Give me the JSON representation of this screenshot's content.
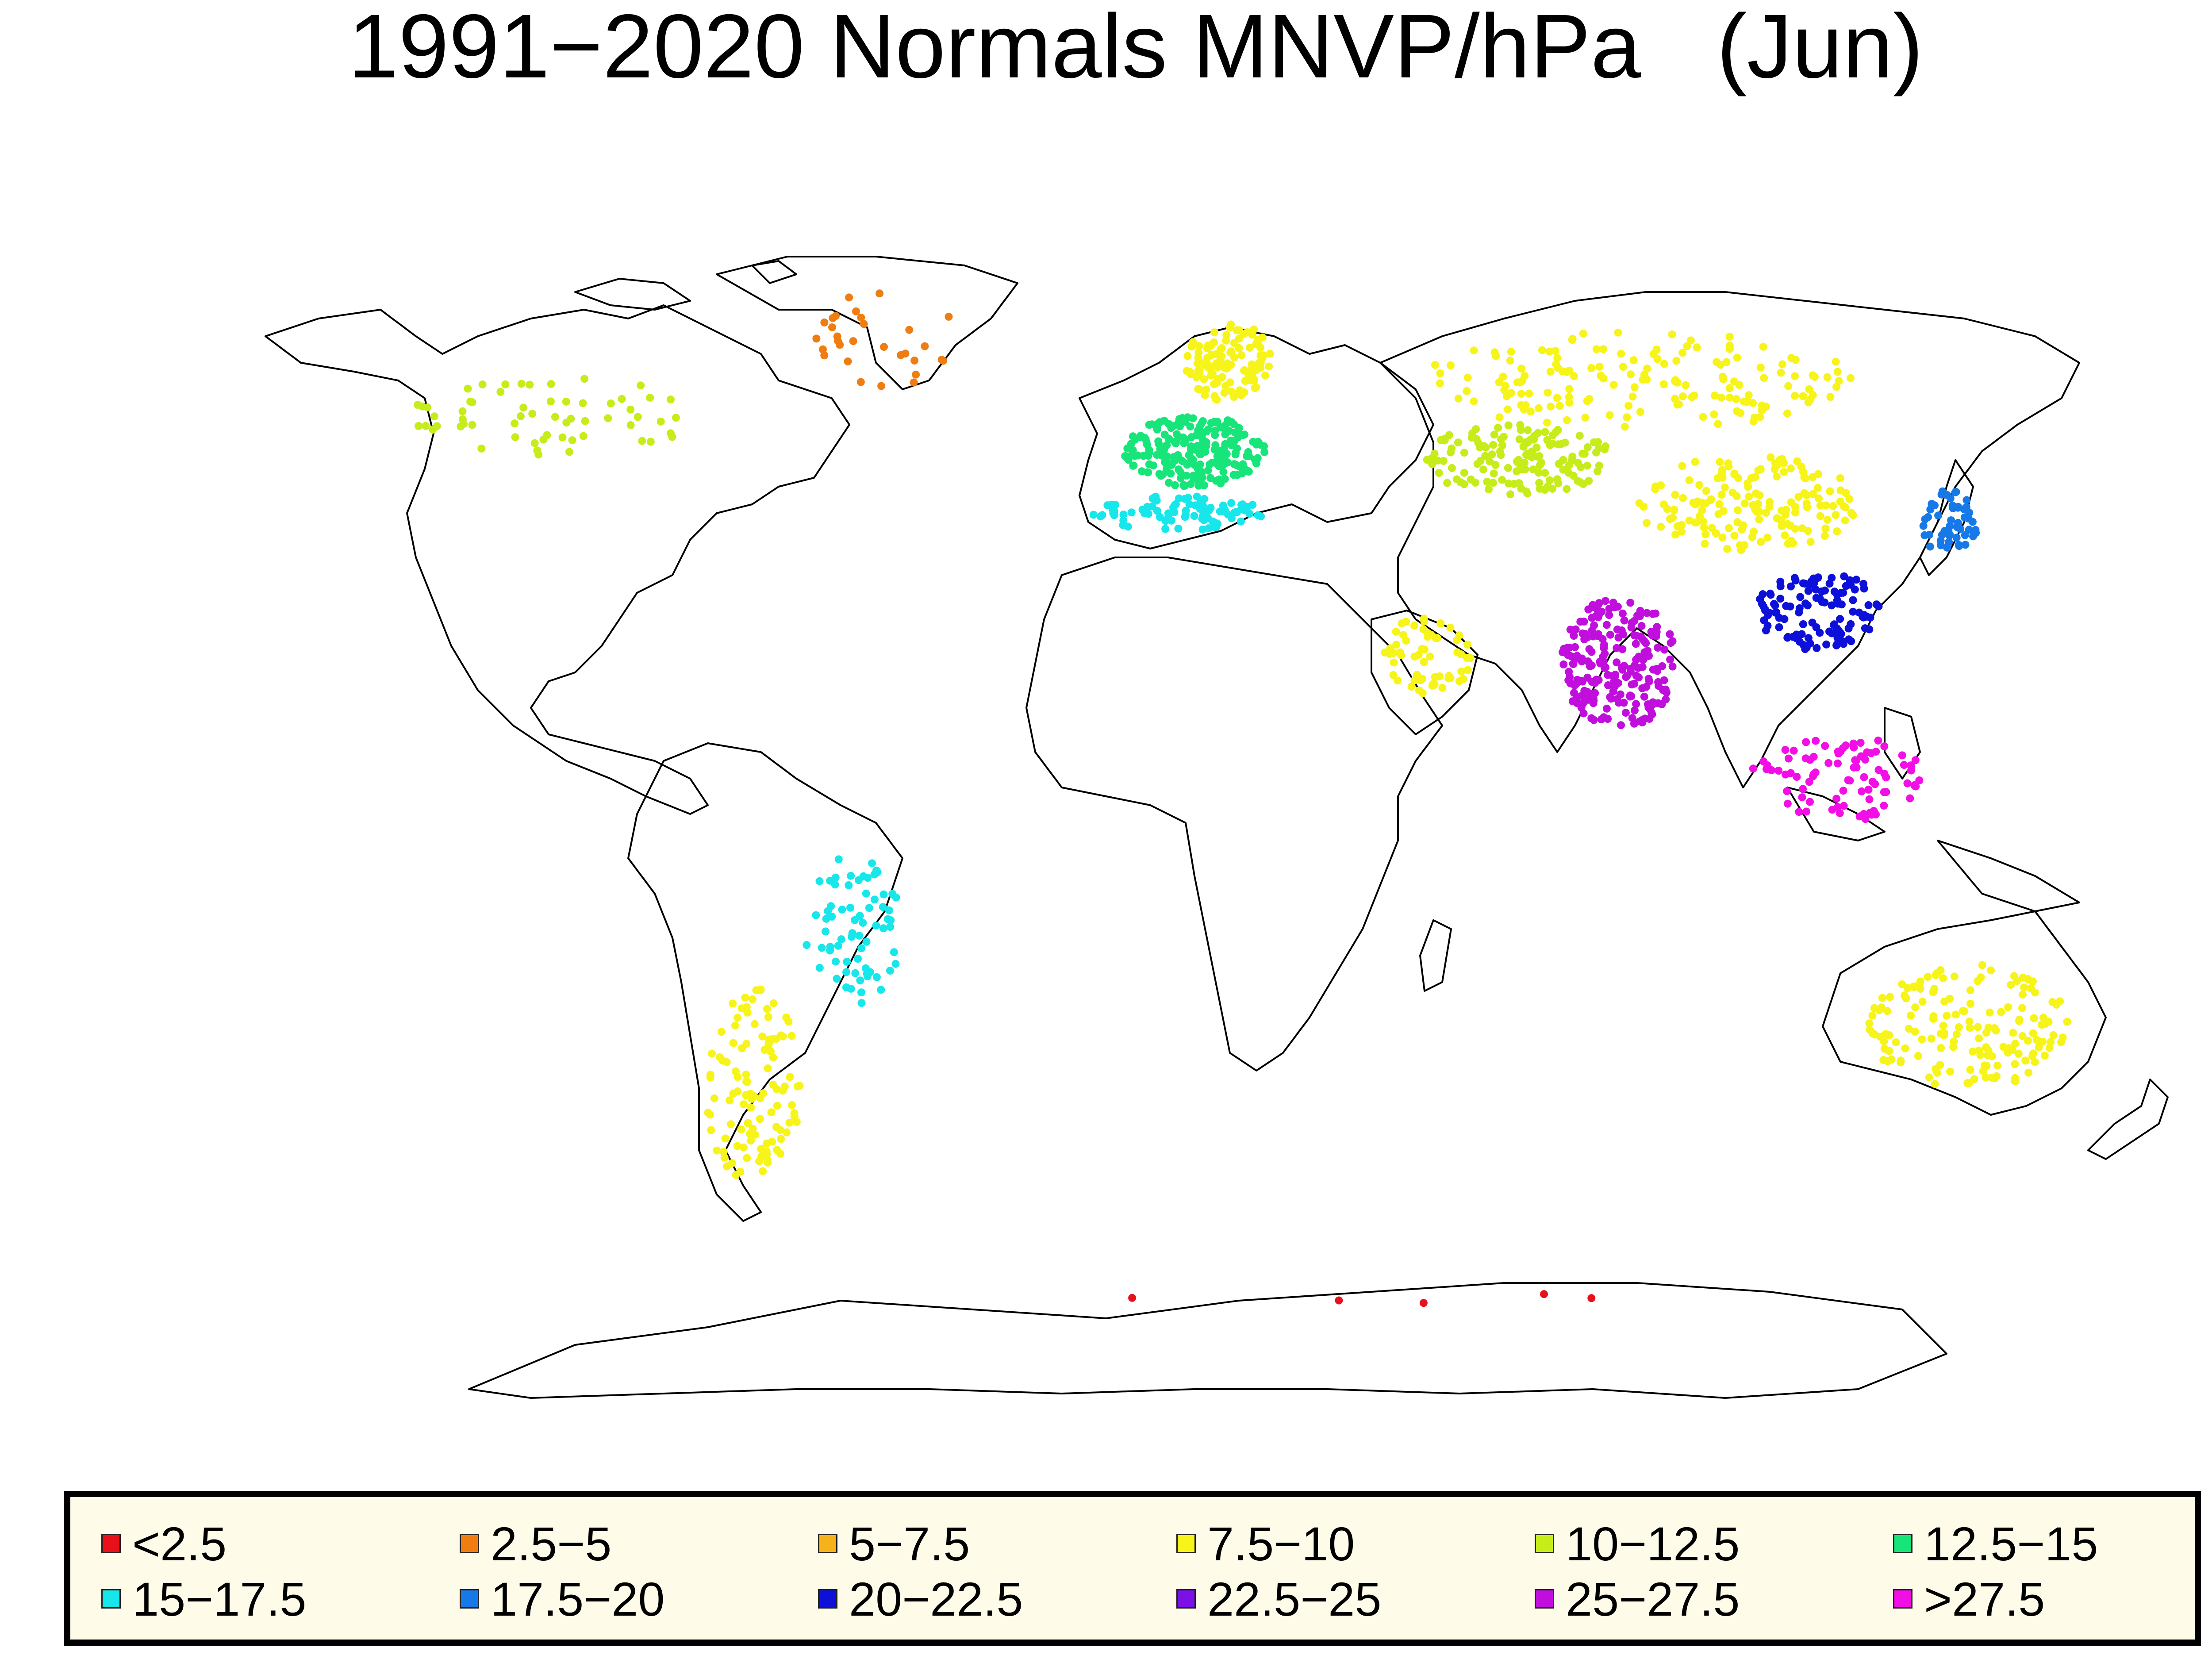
{
  "title": "1991−2020 Normals MNVP/hPa   (Jun)",
  "legend": [
    {
      "label": "<2.5",
      "color": "#e8101a"
    },
    {
      "label": "2.5−5",
      "color": "#f07d12"
    },
    {
      "label": "5−7.5",
      "color": "#f5b21a"
    },
    {
      "label": "7.5−10",
      "color": "#f6f418"
    },
    {
      "label": "10−12.5",
      "color": "#c6ec1a"
    },
    {
      "label": "12.5−15",
      "color": "#17e57a"
    },
    {
      "label": "15−17.5",
      "color": "#17e7ea"
    },
    {
      "label": "17.5−20",
      "color": "#1679e7"
    },
    {
      "label": "20−22.5",
      "color": "#0d10d9"
    },
    {
      "label": "22.5−25",
      "color": "#7b10e8"
    },
    {
      "label": "25−27.5",
      "color": "#c00fdc"
    },
    {
      "label": ">27.5",
      "color": "#f10fe5"
    }
  ],
  "projection": "equirectangular",
  "map_color_regions": [
    {
      "region": "Greenland",
      "color": "#f07d12"
    },
    {
      "region": "Canada",
      "color": "#c6ec1a"
    },
    {
      "region": "Northern Europe",
      "color": "#f6f418"
    },
    {
      "region": "Central Europe",
      "color": "#17e57a"
    },
    {
      "region": "Mediterranean",
      "color": "#17e7ea"
    },
    {
      "region": "Siberia",
      "color": "#f6f418"
    },
    {
      "region": "Central Asia",
      "color": "#c6ec1a"
    },
    {
      "region": "Mongolia / Western China",
      "color": "#f6f418"
    },
    {
      "region": "Arabian Peninsula",
      "color": "#f6f418"
    },
    {
      "region": "India",
      "color": "#c00fdc"
    },
    {
      "region": "Southeast China",
      "color": "#0d10d9"
    },
    {
      "region": "Japan",
      "color": "#1679e7"
    },
    {
      "region": "Philippines / Indonesia",
      "color": "#f10fe5"
    },
    {
      "region": "Australia interior",
      "color": "#f6f418"
    },
    {
      "region": "Brazil",
      "color": "#17e7ea"
    },
    {
      "region": "Argentina",
      "color": "#f6f418"
    },
    {
      "region": "Antarctica",
      "color": "#e8101a"
    }
  ]
}
